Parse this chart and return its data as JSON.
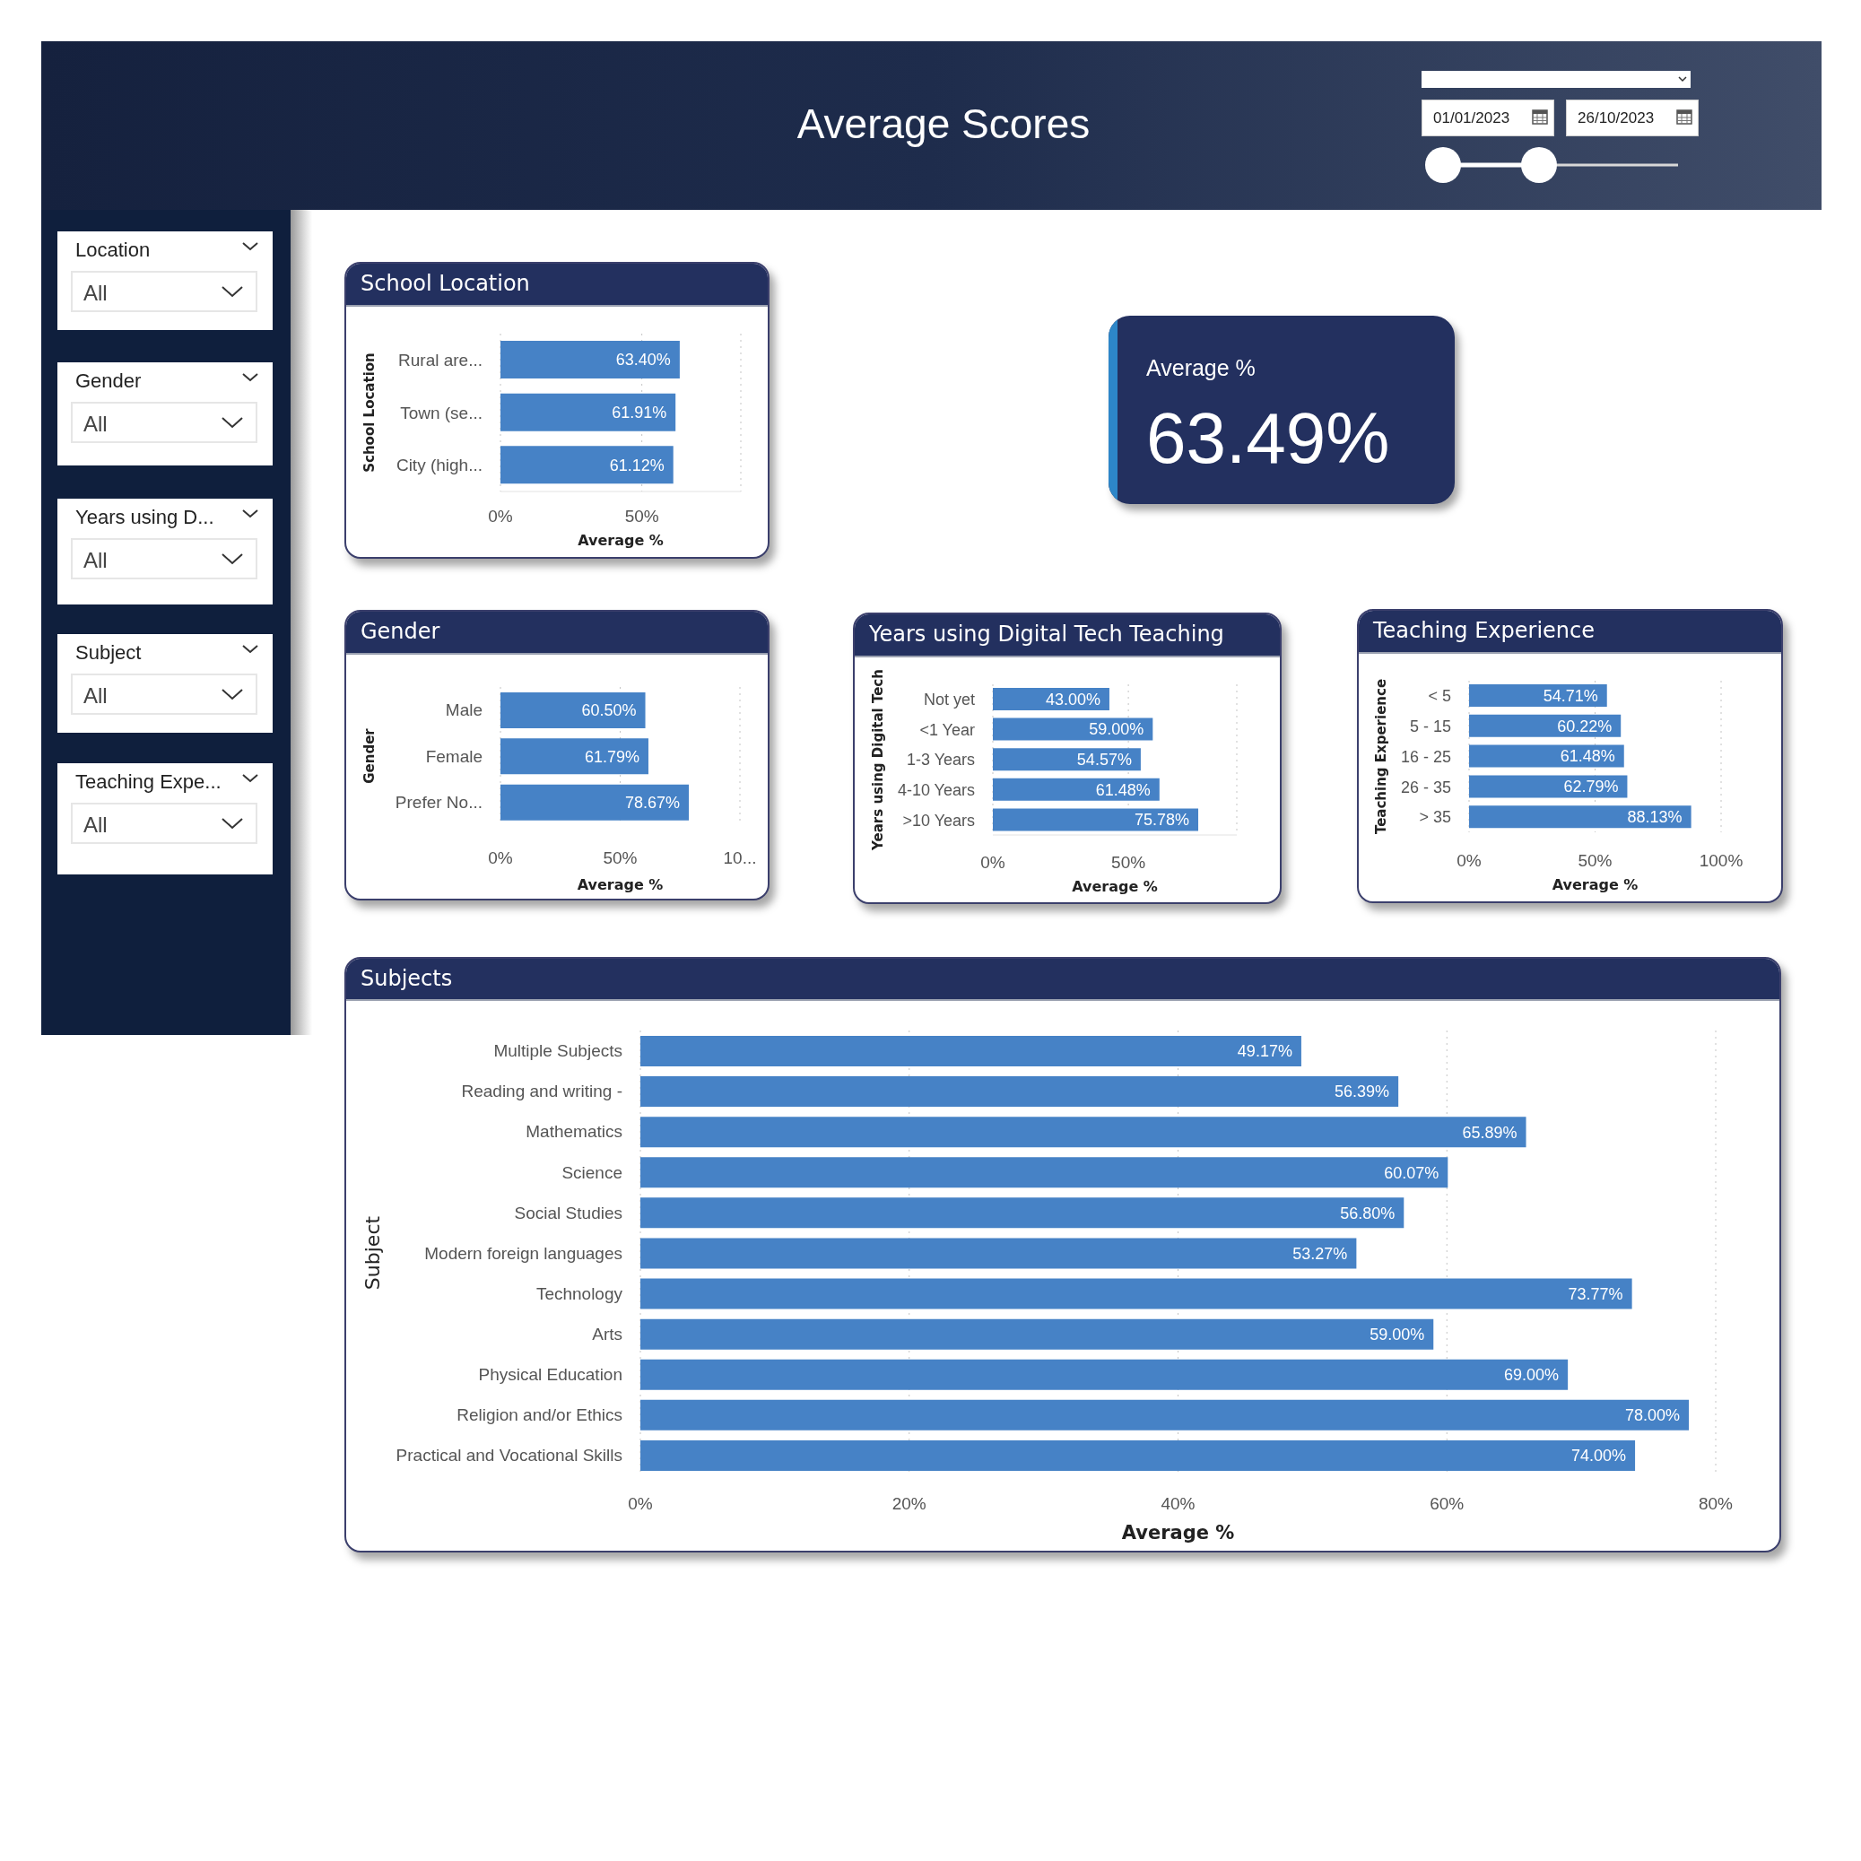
{
  "chart_data": [
    {
      "type": "other",
      "title": "Average Scores",
      "annotations": [
        "01/01/2023",
        "26/10/2023"
      ]
    },
    {
      "type": "other",
      "title": "Location",
      "annotations": [
        "All"
      ]
    },
    {
      "type": "other",
      "title": "Gender",
      "annotations": [
        "All"
      ]
    },
    {
      "type": "other",
      "title": "Years using D...",
      "annotations": [
        "All"
      ]
    },
    {
      "type": "other",
      "title": "Subject",
      "annotations": [
        "All"
      ]
    },
    {
      "type": "other",
      "title": "Teaching Expe...",
      "annotations": [
        "All"
      ]
    },
    {
      "type": "bar",
      "title": "School Location",
      "orientation": "horizontal",
      "categories": [
        "Rural are...",
        "Town (se...",
        "City (high..."
      ],
      "values": [
        63.4,
        61.91,
        61.12
      ],
      "value_labels": [
        "63.40%",
        "61.91%",
        "61.12%"
      ],
      "color": "#4682c6",
      "xlim": [
        0,
        85
      ],
      "xticks": [
        {
          "value": 0,
          "label": "0%"
        },
        {
          "value": 50,
          "label": "50%"
        }
      ],
      "xlabel": "Average %",
      "ylabel": "School Location",
      "grid": "x"
    },
    {
      "type": "other",
      "title": "Average %",
      "annotations": [
        "63.49%"
      ]
    },
    {
      "type": "bar",
      "title": "Gender",
      "orientation": "horizontal",
      "categories": [
        "Male",
        "Female",
        "Prefer No..."
      ],
      "values": [
        60.5,
        61.79,
        78.67
      ],
      "value_labels": [
        "60.50%",
        "61.79%",
        "78.67%"
      ],
      "color": "#4682c6",
      "xlim": [
        0,
        100
      ],
      "xticks": [
        {
          "value": 0,
          "label": "0%"
        },
        {
          "value": 50,
          "label": "50%"
        },
        {
          "value": 100,
          "label": "10..."
        }
      ],
      "xlabel": "Average %",
      "ylabel": "Gender",
      "grid": "x"
    },
    {
      "type": "bar",
      "title": "Years using Digital Tech Teaching",
      "orientation": "horizontal",
      "categories": [
        "Not yet",
        "<1 Year",
        "1-3 Years",
        "4-10 Years",
        ">10 Years"
      ],
      "values": [
        43.0,
        59.0,
        54.57,
        61.48,
        75.78
      ],
      "value_labels": [
        "43.00%",
        "59.00%",
        "54.57%",
        "61.48%",
        "75.78%"
      ],
      "color": "#4682c6",
      "xlim": [
        0,
        90
      ],
      "xticks": [
        {
          "value": 0,
          "label": "0%"
        },
        {
          "value": 50,
          "label": "50%"
        }
      ],
      "xlabel": "Average %",
      "ylabel": "Years using Digital Tech",
      "grid": "x"
    },
    {
      "type": "bar",
      "title": "Teaching Experience",
      "orientation": "horizontal",
      "categories": [
        "< 5",
        "5 - 15",
        "16 - 25",
        "26 - 35",
        "> 35"
      ],
      "values": [
        54.71,
        60.22,
        61.48,
        62.79,
        88.13
      ],
      "value_labels": [
        "54.71%",
        "60.22%",
        "61.48%",
        "62.79%",
        "88.13%"
      ],
      "color": "#4682c6",
      "xlim": [
        0,
        100
      ],
      "xticks": [
        {
          "value": 0,
          "label": "0%"
        },
        {
          "value": 50,
          "label": "50%"
        },
        {
          "value": 100,
          "label": "100%"
        }
      ],
      "xlabel": "Average %",
      "ylabel": "Teaching Experience",
      "grid": "x"
    },
    {
      "type": "bar",
      "title": "Subjects",
      "orientation": "horizontal",
      "categories": [
        "Multiple Subjects",
        "Reading and writing -",
        "Mathematics",
        "Science",
        "Social Studies",
        "Modern foreign languages",
        "Technology",
        "Arts",
        "Physical Education",
        "Religion and/or Ethics",
        "Practical and Vocational Skills"
      ],
      "values": [
        49.17,
        56.39,
        65.89,
        60.07,
        56.8,
        53.27,
        73.77,
        59.0,
        69.0,
        78.0,
        74.0
      ],
      "value_labels": [
        "49.17%",
        "56.39%",
        "65.89%",
        "60.07%",
        "56.80%",
        "53.27%",
        "73.77%",
        "59.00%",
        "69.00%",
        "78.00%",
        "74.00%"
      ],
      "color": "#4682c6",
      "xlim": [
        0,
        80
      ],
      "xticks": [
        {
          "value": 0,
          "label": "0%"
        },
        {
          "value": 20,
          "label": "20%"
        },
        {
          "value": 40,
          "label": "40%"
        },
        {
          "value": 60,
          "label": "60%"
        },
        {
          "value": 80,
          "label": "80%"
        }
      ],
      "xlabel": "Average %",
      "ylabel": "Subject",
      "grid": "x"
    }
  ]
}
